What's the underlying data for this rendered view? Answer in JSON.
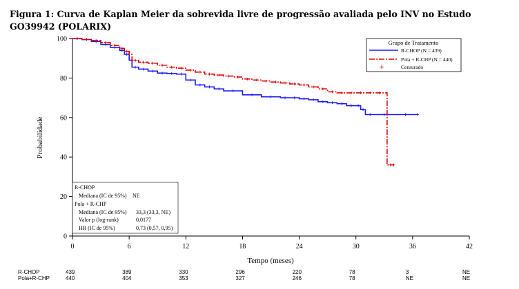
{
  "caption": "Figura 1: Curva de Kaplan Meier da sobrevida livre de progressão avaliada pelo INV no Estudo GO39942 (POLARIX)",
  "chart_data": {
    "type": "line",
    "xlabel": "Tempo (meses)",
    "ylabel": "Probabilidade",
    "xlim": [
      0,
      42
    ],
    "ylim": [
      0,
      100
    ],
    "xticks": [
      0,
      6,
      12,
      18,
      24,
      30,
      36,
      42
    ],
    "yticks": [
      0,
      20,
      40,
      60,
      80,
      100
    ],
    "grid": false,
    "legend": {
      "position": "top-right",
      "title": "Grupo de Tratamento",
      "entries": [
        "R-CHOP (N = 439)",
        "Pola + R-CHP (N = 440)",
        "Censurado"
      ]
    },
    "series": [
      {
        "name": "R-CHOP (N = 439)",
        "color": "#1a1aff",
        "style": "solid",
        "x": [
          0,
          1,
          2,
          3,
          4,
          5,
          5.5,
          6,
          6.3,
          7,
          8,
          9,
          10,
          11,
          12,
          13,
          14,
          15,
          16,
          18,
          20,
          22,
          23,
          24,
          25,
          26,
          27,
          28,
          29,
          30,
          30.5,
          31,
          32,
          34,
          36.5
        ],
        "y": [
          100,
          99.5,
          98.5,
          97,
          95.5,
          94,
          92,
          89,
          85.5,
          84.5,
          83.5,
          82.5,
          82.3,
          82,
          79,
          76.5,
          75.5,
          74.5,
          73.5,
          71.5,
          70.5,
          70,
          70,
          69.5,
          69,
          68,
          67.5,
          67,
          66,
          66,
          64,
          61.5,
          61.5,
          61.5,
          61.5
        ]
      },
      {
        "name": "Pola + R-CHP (N = 440)",
        "color": "#e00000",
        "style": "dashdot",
        "x": [
          0,
          1,
          2,
          3,
          4,
          5,
          5.5,
          6,
          6.3,
          7,
          8,
          9,
          10,
          11,
          12,
          13,
          14,
          15,
          16,
          17,
          18,
          19,
          20,
          21,
          22,
          23,
          24,
          25,
          26,
          27,
          28,
          29,
          30,
          31,
          32,
          33,
          33.2,
          33.3,
          34
        ],
        "y": [
          100,
          99.5,
          99,
          98,
          96.5,
          95,
          93.5,
          92,
          89,
          88,
          87.5,
          86.5,
          85.5,
          85,
          84,
          83,
          82,
          81.5,
          81,
          80.5,
          79.5,
          79,
          78.5,
          78,
          77.5,
          77,
          76.5,
          75.5,
          74.5,
          73,
          72.5,
          72.5,
          72.5,
          72.5,
          72.5,
          72.5,
          72.5,
          36,
          36
        ]
      }
    ],
    "censor_symbol": "+",
    "stats": {
      "r_chop_label": "R-CHOP",
      "r_chop_median": "Mediana (IC de 95%)",
      "r_chop_median_value": "NE",
      "pola_label": "Pola + R-CHP",
      "pola_median": "Mediana (IC de 95%)",
      "pola_median_value": "33,3 (33,3, NE)",
      "p_label": "Valor p (log-rank)",
      "p_value": "0,0177",
      "hr_label": "HR (IC de 95%)",
      "hr_value": "0,73 (0,57, 0,95)"
    },
    "risk_table": {
      "times": [
        0,
        6,
        12,
        18,
        24,
        30,
        36,
        42
      ],
      "rows": [
        {
          "label": "R-CHOP",
          "counts": [
            "439",
            "389",
            "330",
            "296",
            "220",
            "78",
            "3",
            "NE"
          ]
        },
        {
          "label": "Pola+R-CHP",
          "counts": [
            "440",
            "404",
            "353",
            "327",
            "246",
            "78",
            "NE",
            "NE"
          ]
        }
      ]
    }
  }
}
